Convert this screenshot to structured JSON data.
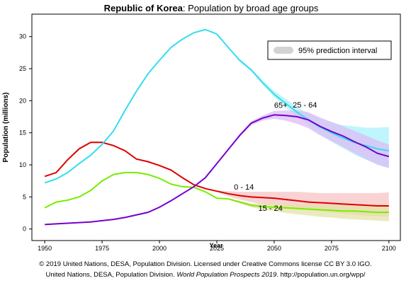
{
  "chart_data": {
    "type": "line",
    "title_bold": "Republic of Korea",
    "title_rest": ": Population by broad age groups",
    "xlabel": "Year",
    "ylabel": "Population (millions)",
    "legend_label": "95% prediction interval",
    "legend_color": "#d3d3d3",
    "footer_line1": "© 2019 United Nations, DESA, Population Division. Licensed under Creative Commons license CC BY 3.0 IGO.",
    "footer_line2_start": "United Nations, DESA, Population Division. ",
    "footer_line2_italic": "World Population Prospects 2019",
    "footer_line2_end": ". http://population.un.org/wpp/",
    "xlim": [
      1944.4,
      2105
    ],
    "ylim": [
      -1.8,
      33.5
    ],
    "xticks": [
      1950,
      1975,
      2000,
      2025,
      2050,
      2075,
      2100
    ],
    "yticks": [
      0,
      5,
      10,
      15,
      20,
      25,
      30
    ],
    "x": [
      1950,
      1955,
      1960,
      1965,
      1970,
      1975,
      1980,
      1985,
      1990,
      1995,
      2000,
      2005,
      2010,
      2015,
      2020,
      2025,
      2030,
      2035,
      2040,
      2045,
      2050,
      2055,
      2060,
      2065,
      2070,
      2075,
      2080,
      2085,
      2090,
      2095,
      2100
    ],
    "series": [
      {
        "name": "0 - 14",
        "color": "#dd0000",
        "band_color": "#f7c4c4",
        "values": [
          8.2,
          8.8,
          10.8,
          12.5,
          13.5,
          13.5,
          13.0,
          12.2,
          10.9,
          10.5,
          9.9,
          9.2,
          8.0,
          6.9,
          6.3,
          5.9,
          5.5,
          5.2,
          5.0,
          4.9,
          4.8,
          4.6,
          4.4,
          4.2,
          4.1,
          4.0,
          3.9,
          3.8,
          3.7,
          3.6,
          3.6
        ],
        "lower": [
          null,
          null,
          null,
          null,
          null,
          null,
          null,
          null,
          null,
          null,
          null,
          null,
          null,
          null,
          6.3,
          5.8,
          5.1,
          4.6,
          4.2,
          3.9,
          3.7,
          3.4,
          3.2,
          3.0,
          2.8,
          2.6,
          2.4,
          2.2,
          2.1,
          2.0,
          1.9
        ],
        "upper": [
          null,
          null,
          null,
          null,
          null,
          null,
          null,
          null,
          null,
          null,
          null,
          null,
          null,
          null,
          6.3,
          6.0,
          5.9,
          5.8,
          5.8,
          5.8,
          5.8,
          5.8,
          5.8,
          5.7,
          5.6,
          5.6,
          5.6,
          5.6,
          5.6,
          5.6,
          5.7
        ]
      },
      {
        "name": "15 - 24",
        "color": "#77ee00",
        "band_color": "#e4e2a8",
        "values": [
          3.3,
          4.2,
          4.5,
          5.0,
          6.0,
          7.5,
          8.5,
          8.8,
          8.8,
          8.5,
          7.9,
          7.0,
          6.6,
          6.5,
          5.8,
          4.8,
          4.7,
          4.2,
          3.7,
          3.5,
          3.4,
          3.3,
          3.2,
          3.1,
          3.0,
          2.9,
          2.8,
          2.8,
          2.7,
          2.6,
          2.6
        ],
        "lower": [
          null,
          null,
          null,
          null,
          null,
          null,
          null,
          null,
          null,
          null,
          null,
          null,
          null,
          null,
          5.8,
          4.8,
          4.6,
          4.0,
          3.4,
          3.0,
          2.8,
          2.5,
          2.3,
          2.1,
          1.9,
          1.8,
          1.6,
          1.5,
          1.4,
          1.3,
          1.2
        ],
        "upper": [
          null,
          null,
          null,
          null,
          null,
          null,
          null,
          null,
          null,
          null,
          null,
          null,
          null,
          null,
          5.8,
          4.8,
          4.8,
          4.4,
          4.0,
          4.0,
          4.0,
          3.9,
          3.9,
          3.9,
          3.9,
          3.8,
          3.8,
          3.8,
          3.8,
          3.8,
          3.8
        ]
      },
      {
        "name": "25 - 64",
        "color": "#33ddee",
        "band_color": "#aaf2fb",
        "values": [
          7.2,
          7.8,
          8.8,
          10.2,
          11.5,
          13.2,
          15.3,
          18.5,
          21.5,
          24.2,
          26.3,
          28.3,
          29.6,
          30.6,
          31.1,
          30.4,
          28.3,
          26.3,
          24.8,
          22.8,
          21.0,
          19.6,
          18.2,
          17.0,
          15.9,
          15.0,
          14.2,
          13.5,
          13.0,
          12.5,
          12.2
        ],
        "lower": [
          null,
          null,
          null,
          null,
          null,
          null,
          null,
          null,
          null,
          null,
          null,
          null,
          null,
          null,
          31.1,
          30.4,
          28.2,
          26.1,
          24.6,
          22.5,
          20.6,
          19.0,
          17.5,
          16.1,
          14.8,
          13.6,
          12.6,
          11.6,
          10.8,
          10.1,
          9.5
        ],
        "upper": [
          null,
          null,
          null,
          null,
          null,
          null,
          null,
          null,
          null,
          null,
          null,
          null,
          null,
          null,
          31.1,
          30.4,
          28.4,
          26.5,
          25.0,
          23.2,
          21.5,
          20.3,
          19.0,
          18.0,
          17.2,
          16.6,
          16.2,
          16.0,
          15.8,
          15.8,
          15.9
        ]
      },
      {
        "name": "65+",
        "color": "#7700cc",
        "band_color": "#dcbcf6",
        "values": [
          0.7,
          0.8,
          0.9,
          1.0,
          1.1,
          1.3,
          1.5,
          1.8,
          2.2,
          2.6,
          3.4,
          4.4,
          5.5,
          6.6,
          8.0,
          10.2,
          12.4,
          14.6,
          16.5,
          17.3,
          17.8,
          17.7,
          17.5,
          17.0,
          16.0,
          15.2,
          14.5,
          13.6,
          12.8,
          11.8,
          11.3
        ],
        "lower": [
          null,
          null,
          null,
          null,
          null,
          null,
          null,
          null,
          null,
          null,
          null,
          null,
          null,
          null,
          8.0,
          10.2,
          12.3,
          14.4,
          16.2,
          16.9,
          17.2,
          16.9,
          16.4,
          15.7,
          14.6,
          13.7,
          12.8,
          11.8,
          10.9,
          10.0,
          9.5
        ],
        "upper": [
          null,
          null,
          null,
          null,
          null,
          null,
          null,
          null,
          null,
          null,
          null,
          null,
          null,
          null,
          8.0,
          10.2,
          12.5,
          14.8,
          16.8,
          17.7,
          18.4,
          18.5,
          18.5,
          18.2,
          17.4,
          16.7,
          16.0,
          15.3,
          14.6,
          13.8,
          13.2
        ]
      }
    ]
  }
}
